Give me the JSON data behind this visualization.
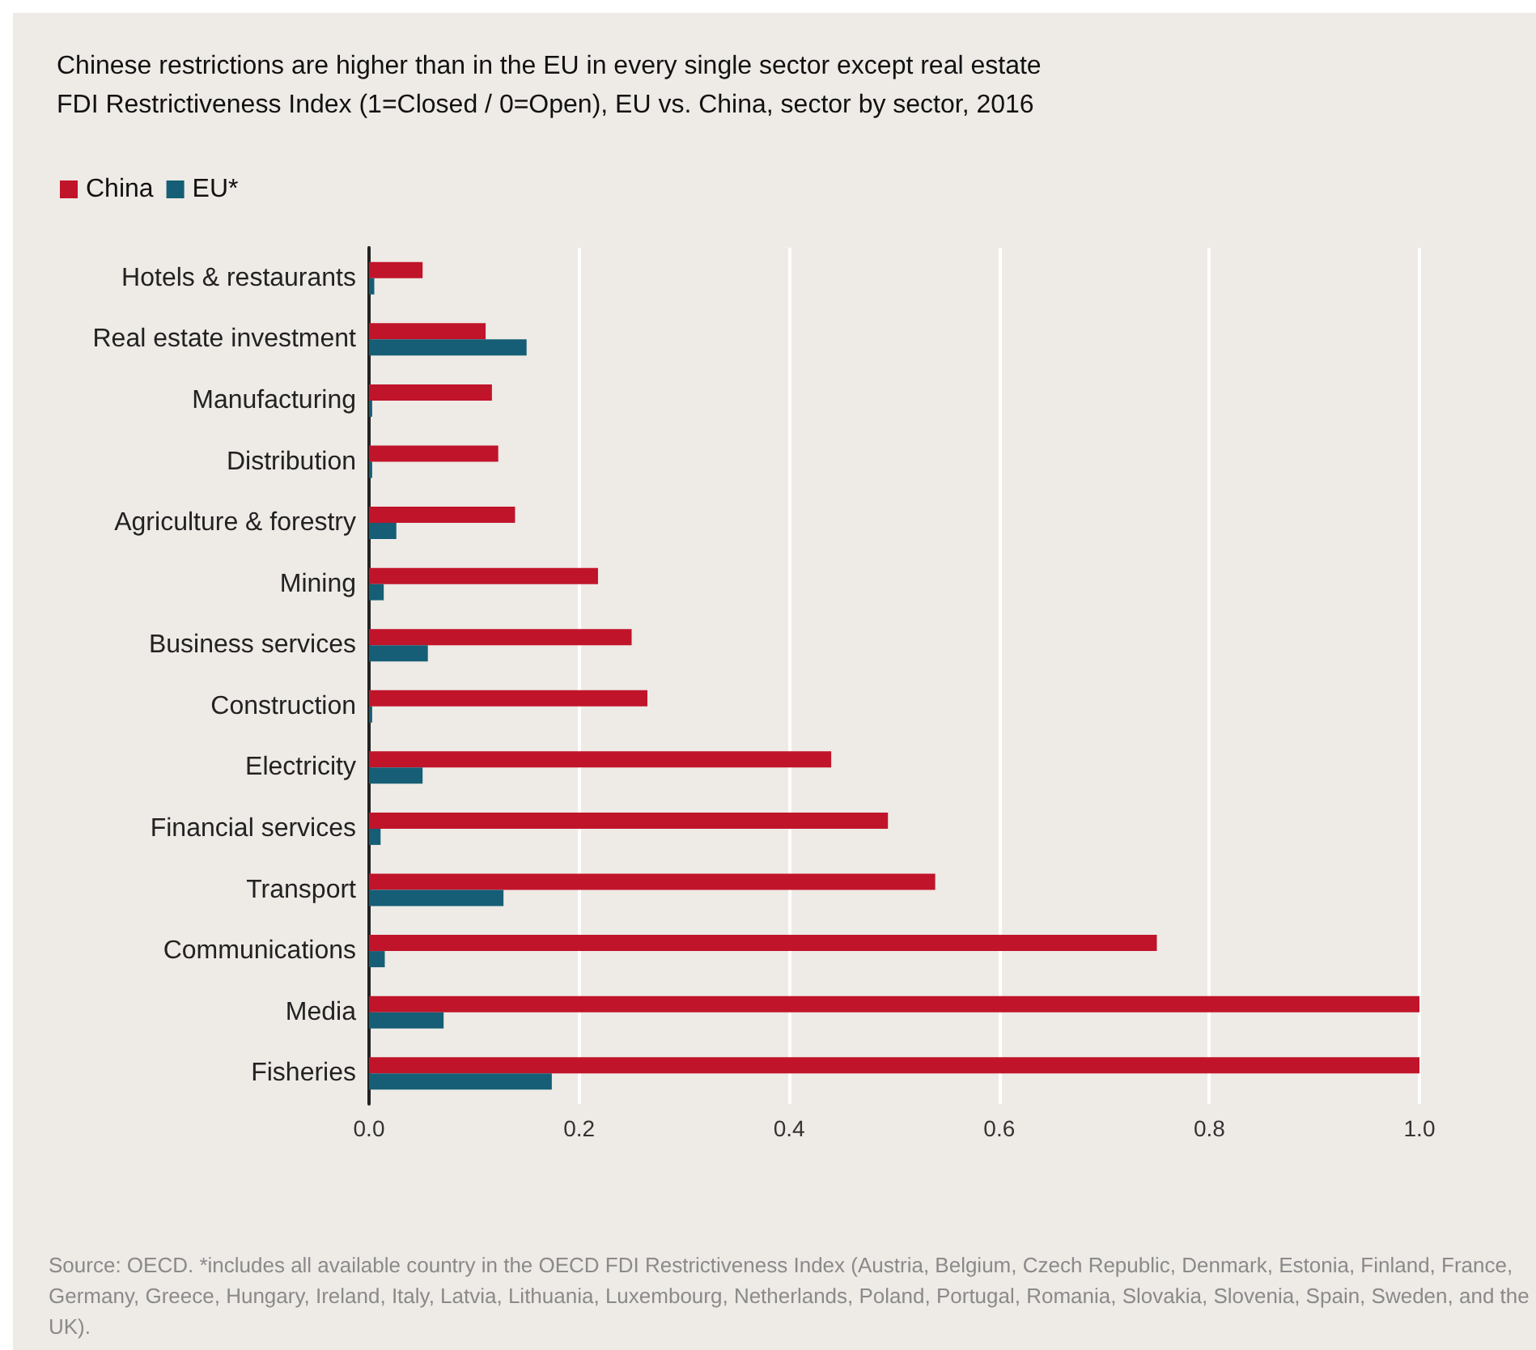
{
  "chart_data": {
    "type": "bar",
    "orientation": "horizontal",
    "title": "Chinese restrictions are higher than in the EU in every single sector except real estate",
    "subtitle": "FDI Restrictiveness Index (1=Closed / 0=Open), EU vs. China, sector by sector, 2016",
    "categories": [
      "Hotels & restaurants",
      "Real estate investment",
      "Manufacturing",
      "Distribution",
      "Agriculture & forestry",
      "Mining",
      "Business services",
      "Construction",
      "Electricity",
      "Financial services",
      "Transport",
      "Communications",
      "Media",
      "Fisheries"
    ],
    "series": [
      {
        "name": "China",
        "color": "#c0142a",
        "values": [
          0.051,
          0.111,
          0.117,
          0.123,
          0.139,
          0.218,
          0.25,
          0.265,
          0.44,
          0.494,
          0.539,
          0.75,
          1.0,
          1.0
        ]
      },
      {
        "name": "EU*",
        "color": "#155e75",
        "values": [
          0.005,
          0.15,
          0.003,
          0.003,
          0.026,
          0.014,
          0.056,
          0.003,
          0.051,
          0.011,
          0.128,
          0.015,
          0.071,
          0.174
        ]
      }
    ],
    "xlim": [
      0,
      1
    ],
    "xticks": [
      {
        "value": 0,
        "label": "0.0"
      },
      {
        "value": 0.2,
        "label": "0.2"
      },
      {
        "value": 0.4,
        "label": "0.4"
      },
      {
        "value": 0.6,
        "label": "0.6"
      },
      {
        "value": 0.8,
        "label": "0.8"
      },
      {
        "value": 1,
        "label": "1.0"
      }
    ],
    "grid": "x",
    "legend": "top left",
    "annotations": [
      "Source: OECD. *includes all available country in the OECD FDI Restrictiveness Index (Austria, Belgium, Czech Republic, Denmark, Estonia, Finland, France, Germany, Greece, Hungary, Ireland, Italy, Latvia, Lithuania, Luxembourg, Netherlands, Poland, Portugal, Romania, Slovakia, Slovenia, Spain, Sweden, and the UK)."
    ]
  }
}
